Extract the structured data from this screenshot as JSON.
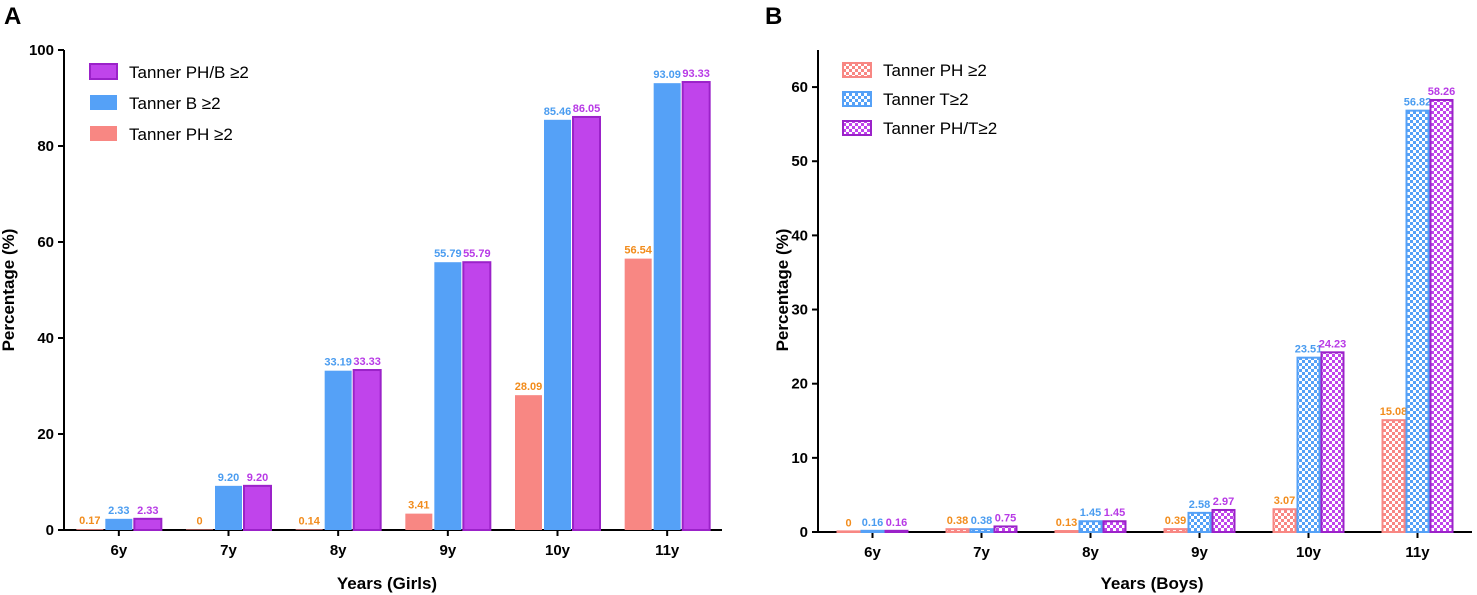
{
  "chart_data": [
    {
      "panel": "A",
      "type": "bar",
      "xlabel": "Years (Girls)",
      "ylabel": "Percentage (%)",
      "ylim": [
        0,
        100
      ],
      "yticks": [
        0,
        20,
        40,
        60,
        80,
        100
      ],
      "categories": [
        "6y",
        "7y",
        "8y",
        "9y",
        "10y",
        "11y"
      ],
      "series": [
        {
          "name": "Tanner PH ≥2",
          "fill": "#f88783",
          "stroke": "#f88783",
          "pattern": false,
          "label_color": "#f28c1c",
          "values": [
            0.17,
            0,
            0.14,
            3.41,
            28.09,
            56.54
          ],
          "labels": [
            "0.17",
            "0",
            "0.14",
            "3.41",
            "28.09",
            "56.54"
          ]
        },
        {
          "name": "Tanner B ≥2",
          "fill": "#55a1f7",
          "stroke": "#55a1f7",
          "pattern": false,
          "label_color": "#4a9cf0",
          "values": [
            2.33,
            9.2,
            33.19,
            55.79,
            85.46,
            93.09
          ],
          "labels": [
            "2.33",
            "9.20",
            "33.19",
            "55.79",
            "85.46",
            "93.09"
          ]
        },
        {
          "name": "Tanner PH/B ≥2",
          "fill": "#c044eb",
          "stroke": "#9b22c9",
          "pattern": false,
          "label_color": "#b83ae6",
          "values": [
            2.33,
            9.2,
            33.33,
            55.79,
            86.05,
            93.33
          ],
          "labels": [
            "2.33",
            "9.20",
            "33.33",
            "55.79",
            "86.05",
            "93.33"
          ]
        }
      ],
      "legend_order": [
        2,
        1,
        0
      ],
      "legend": "top-left"
    },
    {
      "panel": "B",
      "type": "bar",
      "xlabel": "Years (Boys)",
      "ylabel": "Percentage (%)",
      "ylim": [
        0,
        65
      ],
      "yticks": [
        0,
        10,
        20,
        30,
        40,
        50,
        60
      ],
      "categories": [
        "6y",
        "7y",
        "8y",
        "9y",
        "10y",
        "11y"
      ],
      "series": [
        {
          "name": "Tanner PH ≥2",
          "fill": "#f88783",
          "stroke": "#f88783",
          "pattern": true,
          "label_color": "#f28c1c",
          "values": [
            0,
            0.38,
            0.13,
            0.39,
            3.07,
            15.08
          ],
          "labels": [
            "0",
            "0.38",
            "0.13",
            "0.39",
            "3.07",
            "15.08"
          ]
        },
        {
          "name": "Tanner T≥2",
          "fill": "#55a1f7",
          "stroke": "#55a1f7",
          "pattern": true,
          "label_color": "#4a9cf0",
          "values": [
            0.16,
            0.38,
            1.45,
            2.58,
            23.51,
            56.82
          ],
          "labels": [
            "0.16",
            "0.38",
            "1.45",
            "2.58",
            "23.51",
            "56.82"
          ]
        },
        {
          "name": "Tanner PH/T≥2",
          "fill": "#c044eb",
          "stroke": "#9b22c9",
          "pattern": true,
          "label_color": "#b83ae6",
          "values": [
            0.16,
            0.75,
            1.45,
            2.97,
            24.23,
            58.26
          ],
          "labels": [
            "0.16",
            "0.75",
            "1.45",
            "2.97",
            "24.23",
            "58.26"
          ]
        }
      ],
      "legend_order": [
        0,
        1,
        2
      ],
      "legend": "top-left"
    }
  ]
}
